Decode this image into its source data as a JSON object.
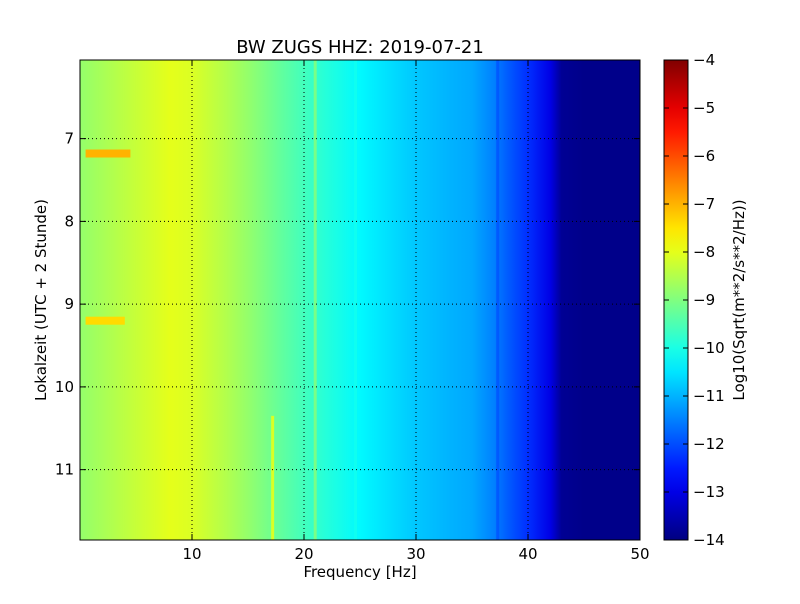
{
  "chart_data": {
    "type": "heatmap",
    "title": "BW ZUGS HHZ: 2019-07-21",
    "xlabel": "Frequency [Hz]",
    "ylabel": "Lokalzeit (UTC + 2 Stunde)",
    "xlim": [
      0,
      50
    ],
    "ylim": [
      11.85,
      6.05
    ],
    "y_inverted": true,
    "x_ticks": [
      10,
      20,
      30,
      40,
      50
    ],
    "y_ticks": [
      7,
      8,
      9,
      10,
      11
    ],
    "grid": true,
    "colormap": "jet",
    "colorbar": {
      "label": "Log10(Sqrt(m**2/s**2/Hz))",
      "min": -14,
      "max": -4,
      "ticks": [
        -4,
        -5,
        -6,
        -7,
        -8,
        -9,
        -10,
        -11,
        -12,
        -13,
        -14
      ]
    },
    "frequency_profile": {
      "frequency_hz": [
        0,
        2,
        5,
        8,
        10,
        13,
        15,
        18,
        20,
        22,
        25,
        28,
        30,
        33,
        35,
        37,
        38,
        40,
        42,
        43,
        45,
        50
      ],
      "log10_psd": [
        -8.8,
        -8.6,
        -8.3,
        -8.0,
        -8.1,
        -8.5,
        -8.8,
        -9.3,
        -9.6,
        -9.9,
        -10.3,
        -10.6,
        -10.8,
        -11.0,
        -11.1,
        -11.5,
        -11.8,
        -12.3,
        -13.0,
        -13.8,
        -13.9,
        -13.9
      ]
    },
    "features": [
      {
        "kind": "horizontal-band",
        "time_hours": 7.18,
        "freq_range_hz": [
          0.5,
          4.5
        ],
        "log10_psd": -7.0
      },
      {
        "kind": "horizontal-band",
        "time_hours": 9.2,
        "freq_range_hz": [
          0.5,
          4.0
        ],
        "log10_psd": -7.4
      },
      {
        "kind": "vertical-line",
        "freq_hz": 17.2,
        "time_range_hours": [
          10.35,
          11.85
        ],
        "log10_psd": -8.0
      },
      {
        "kind": "vertical-line",
        "freq_hz": 21.0,
        "time_range_hours": [
          6.05,
          11.85
        ],
        "log10_psd": -9.0
      },
      {
        "kind": "vertical-line",
        "freq_hz": 37.3,
        "time_range_hours": [
          6.05,
          11.85
        ],
        "log10_psd": -11.9
      },
      {
        "kind": "vertical-line",
        "freq_hz": 24.6,
        "time_range_hours": [
          6.05,
          11.85
        ],
        "log10_psd": -10.1
      }
    ]
  }
}
